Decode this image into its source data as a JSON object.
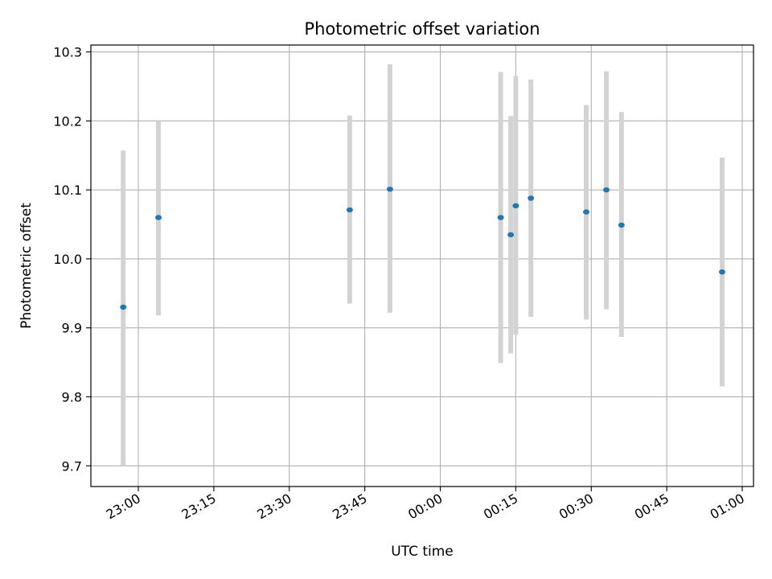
{
  "chart_data": {
    "type": "scatter",
    "title": "Photometric offset variation",
    "xlabel": "UTC time",
    "ylabel": "Photometric offset",
    "x_axis_kind": "time",
    "x_ticks": [
      "23:00",
      "23:15",
      "23:30",
      "23:45",
      "00:00",
      "00:15",
      "00:30",
      "00:45",
      "01:00"
    ],
    "y_ticks": [
      "9.7",
      "9.8",
      "9.9",
      "10.0",
      "10.1",
      "10.2",
      "10.3"
    ],
    "ylim": [
      9.67,
      10.31
    ],
    "grid": true,
    "point_color": "#1f77b4",
    "errorbar_color": "#d3d3d3",
    "points": [
      {
        "x": "22:57",
        "y": 9.93,
        "ylow": 9.7,
        "yhigh": 10.157
      },
      {
        "x": "23:04",
        "y": 10.06,
        "ylow": 9.918,
        "yhigh": 10.2
      },
      {
        "x": "23:42",
        "y": 10.071,
        "ylow": 9.935,
        "yhigh": 10.208
      },
      {
        "x": "23:50",
        "y": 10.101,
        "ylow": 9.922,
        "yhigh": 10.282
      },
      {
        "x": "00:12",
        "y": 10.06,
        "ylow": 9.849,
        "yhigh": 10.271
      },
      {
        "x": "00:14",
        "y": 10.035,
        "ylow": 9.863,
        "yhigh": 10.207
      },
      {
        "x": "00:15",
        "y": 10.077,
        "ylow": 9.89,
        "yhigh": 10.265
      },
      {
        "x": "00:18",
        "y": 10.088,
        "ylow": 9.916,
        "yhigh": 10.26
      },
      {
        "x": "00:29",
        "y": 10.068,
        "ylow": 9.912,
        "yhigh": 10.223
      },
      {
        "x": "00:33",
        "y": 10.1,
        "ylow": 9.927,
        "yhigh": 10.272
      },
      {
        "x": "00:36",
        "y": 10.049,
        "ylow": 9.887,
        "yhigh": 10.213
      },
      {
        "x": "00:56",
        "y": 9.981,
        "ylow": 9.815,
        "yhigh": 10.147
      }
    ]
  }
}
